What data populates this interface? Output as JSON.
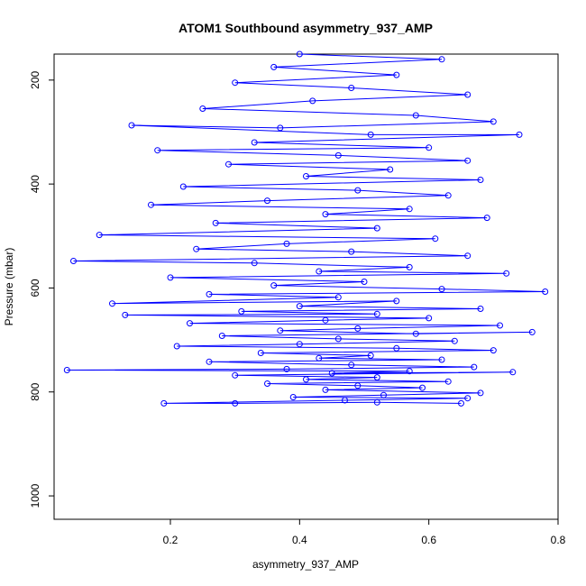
{
  "chart_data": {
    "type": "line",
    "title": "ATOM1 Southbound asymmetry_937_AMP",
    "xlabel": "asymmetry_937_AMP",
    "ylabel": "Pressure (mbar)",
    "xlim": [
      0.02,
      0.8
    ],
    "ylim": [
      1045,
      150
    ],
    "y_reversed": true,
    "xticks": [
      0.2,
      0.4,
      0.6,
      0.8
    ],
    "xtick_labels": [
      "0.2",
      "0.4",
      "0.6",
      "0.8"
    ],
    "yticks": [
      200,
      400,
      600,
      800,
      1000
    ],
    "ytick_labels": [
      "200",
      "400",
      "600",
      "800",
      "1000"
    ],
    "grid": false,
    "legend": "none",
    "series": [
      {
        "color": "#0000ff",
        "marker": "open-circle",
        "points": [
          [
            0.4,
            150
          ],
          [
            0.62,
            160
          ],
          [
            0.36,
            175
          ],
          [
            0.55,
            190
          ],
          [
            0.3,
            205
          ],
          [
            0.48,
            215
          ],
          [
            0.66,
            228
          ],
          [
            0.42,
            240
          ],
          [
            0.25,
            255
          ],
          [
            0.58,
            268
          ],
          [
            0.7,
            280
          ],
          [
            0.37,
            292
          ],
          [
            0.14,
            287
          ],
          [
            0.51,
            305
          ],
          [
            0.74,
            305
          ],
          [
            0.33,
            320
          ],
          [
            0.6,
            330
          ],
          [
            0.18,
            335
          ],
          [
            0.46,
            345
          ],
          [
            0.66,
            355
          ],
          [
            0.29,
            362
          ],
          [
            0.54,
            372
          ],
          [
            0.41,
            385
          ],
          [
            0.68,
            392
          ],
          [
            0.22,
            405
          ],
          [
            0.49,
            412
          ],
          [
            0.63,
            422
          ],
          [
            0.35,
            432
          ],
          [
            0.17,
            440
          ],
          [
            0.57,
            448
          ],
          [
            0.44,
            458
          ],
          [
            0.69,
            465
          ],
          [
            0.27,
            475
          ],
          [
            0.52,
            485
          ],
          [
            0.09,
            498
          ],
          [
            0.61,
            505
          ],
          [
            0.38,
            515
          ],
          [
            0.24,
            525
          ],
          [
            0.48,
            530
          ],
          [
            0.66,
            538
          ],
          [
            0.05,
            548
          ],
          [
            0.33,
            552
          ],
          [
            0.57,
            560
          ],
          [
            0.43,
            568
          ],
          [
            0.72,
            572
          ],
          [
            0.2,
            580
          ],
          [
            0.5,
            588
          ],
          [
            0.36,
            595
          ],
          [
            0.62,
            602
          ],
          [
            0.78,
            607
          ],
          [
            0.26,
            612
          ],
          [
            0.46,
            618
          ],
          [
            0.11,
            630
          ],
          [
            0.55,
            625
          ],
          [
            0.4,
            635
          ],
          [
            0.68,
            640
          ],
          [
            0.31,
            645
          ],
          [
            0.52,
            650
          ],
          [
            0.13,
            652
          ],
          [
            0.6,
            658
          ],
          [
            0.44,
            662
          ],
          [
            0.23,
            668
          ],
          [
            0.71,
            672
          ],
          [
            0.49,
            678
          ],
          [
            0.37,
            682
          ],
          [
            0.58,
            688
          ],
          [
            0.76,
            685
          ],
          [
            0.28,
            692
          ],
          [
            0.46,
            698
          ],
          [
            0.64,
            702
          ],
          [
            0.4,
            708
          ],
          [
            0.21,
            712
          ],
          [
            0.55,
            716
          ],
          [
            0.7,
            720
          ],
          [
            0.34,
            725
          ],
          [
            0.51,
            730
          ],
          [
            0.43,
            735
          ],
          [
            0.62,
            738
          ],
          [
            0.26,
            742
          ],
          [
            0.48,
            748
          ],
          [
            0.67,
            752
          ],
          [
            0.38,
            756
          ],
          [
            0.04,
            758
          ],
          [
            0.57,
            760
          ],
          [
            0.45,
            764
          ],
          [
            0.73,
            762
          ],
          [
            0.3,
            768
          ],
          [
            0.52,
            772
          ],
          [
            0.41,
            776
          ],
          [
            0.63,
            780
          ],
          [
            0.35,
            784
          ],
          [
            0.49,
            788
          ],
          [
            0.59,
            792
          ],
          [
            0.44,
            796
          ],
          [
            0.68,
            802
          ],
          [
            0.53,
            806
          ],
          [
            0.39,
            810
          ],
          [
            0.66,
            812
          ],
          [
            0.47,
            816
          ],
          [
            0.19,
            822
          ],
          [
            0.3,
            822
          ],
          [
            0.52,
            820
          ],
          [
            0.65,
            822
          ]
        ]
      }
    ]
  }
}
